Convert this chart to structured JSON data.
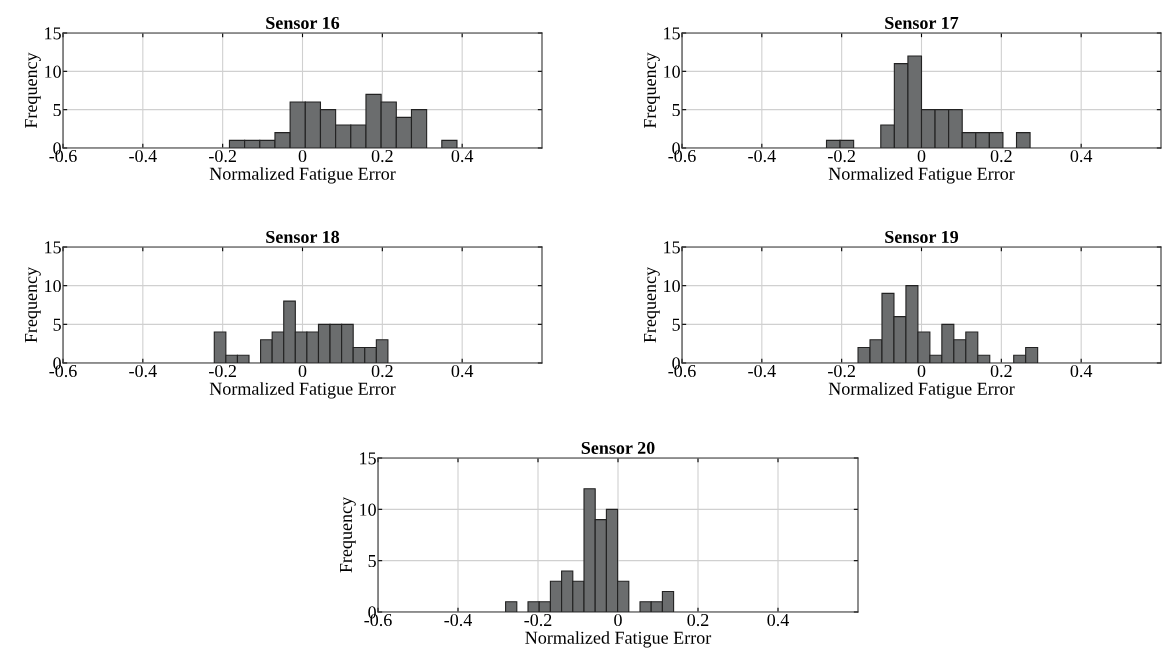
{
  "chart_data": [
    {
      "type": "histogram",
      "title": "Sensor 16",
      "xlabel": "Normalized Fatigue Error",
      "ylabel": "Frequency",
      "color": "#6b6d6e",
      "grid": true,
      "bins": [
        -0.183,
        -0.145,
        -0.107,
        -0.069,
        -0.031,
        0.007,
        0.045,
        0.083,
        0.121,
        0.159,
        0.197,
        0.235,
        0.273,
        0.311,
        0.349,
        0.387
      ],
      "values": [
        1,
        1,
        1,
        2,
        6,
        6,
        5,
        3,
        3,
        7,
        6,
        4,
        5,
        0,
        1
      ],
      "xlim": [
        -0.6,
        0.6
      ],
      "xticks": [
        -0.6,
        -0.4,
        -0.2,
        0,
        0.2,
        0.4
      ],
      "ylim": [
        0,
        15
      ],
      "yticks": [
        0,
        5,
        10,
        15
      ]
    },
    {
      "type": "histogram",
      "title": "Sensor 17",
      "xlabel": "Normalized Fatigue Error",
      "ylabel": "Frequency",
      "color": "#6b6d6e",
      "grid": true,
      "bins": [
        -0.238,
        -0.204,
        -0.17,
        -0.136,
        -0.102,
        -0.068,
        -0.034,
        0.0,
        0.034,
        0.068,
        0.102,
        0.136,
        0.17,
        0.204,
        0.238,
        0.272
      ],
      "values": [
        1,
        1,
        0,
        0,
        3,
        11,
        12,
        5,
        5,
        5,
        2,
        2,
        2,
        0,
        2
      ],
      "xlim": [
        -0.6,
        0.6
      ],
      "xticks": [
        -0.6,
        -0.4,
        -0.2,
        0,
        0.2,
        0.4
      ],
      "ylim": [
        0,
        15
      ],
      "yticks": [
        0,
        5,
        10,
        15
      ]
    },
    {
      "type": "histogram",
      "title": "Sensor 18",
      "xlabel": "Normalized Fatigue Error",
      "ylabel": "Frequency",
      "color": "#6b6d6e",
      "grid": true,
      "bins": [
        -0.221,
        -0.192,
        -0.163,
        -0.134,
        -0.105,
        -0.076,
        -0.047,
        -0.018,
        0.011,
        0.04,
        0.069,
        0.098,
        0.127,
        0.156,
        0.185,
        0.214
      ],
      "values": [
        4,
        1,
        1,
        0,
        3,
        4,
        8,
        4,
        4,
        5,
        5,
        5,
        2,
        2,
        3
      ],
      "xlim": [
        -0.6,
        0.6
      ],
      "xticks": [
        -0.6,
        -0.4,
        -0.2,
        0,
        0.2,
        0.4
      ],
      "ylim": [
        0,
        15
      ],
      "yticks": [
        0,
        5,
        10,
        15
      ]
    },
    {
      "type": "histogram",
      "title": "Sensor 19",
      "xlabel": "Normalized Fatigue Error",
      "ylabel": "Frequency",
      "color": "#6b6d6e",
      "grid": true,
      "bins": [
        -0.159,
        -0.129,
        -0.099,
        -0.069,
        -0.039,
        -0.009,
        0.021,
        0.051,
        0.081,
        0.111,
        0.141,
        0.171,
        0.201,
        0.231,
        0.261,
        0.291
      ],
      "values": [
        2,
        3,
        9,
        6,
        10,
        4,
        1,
        5,
        3,
        4,
        1,
        0,
        0,
        1,
        2
      ],
      "xlim": [
        -0.6,
        0.6
      ],
      "xticks": [
        -0.6,
        -0.4,
        -0.2,
        0,
        0.2,
        0.4
      ],
      "ylim": [
        0,
        15
      ],
      "yticks": [
        0,
        5,
        10,
        15
      ]
    },
    {
      "type": "histogram",
      "title": "Sensor 20",
      "xlabel": "Normalized Fatigue Error",
      "ylabel": "Frequency",
      "color": "#6b6d6e",
      "grid": true,
      "bins": [
        -0.281,
        -0.253,
        -0.225,
        -0.197,
        -0.169,
        -0.141,
        -0.113,
        -0.085,
        -0.057,
        -0.029,
        -0.001,
        0.027,
        0.055,
        0.083,
        0.111,
        0.139
      ],
      "values": [
        1,
        0,
        1,
        1,
        3,
        4,
        3,
        12,
        9,
        10,
        3,
        0,
        1,
        1,
        2
      ],
      "xlim": [
        -0.6,
        0.6
      ],
      "xticks": [
        -0.6,
        -0.4,
        -0.2,
        0,
        0.2,
        0.4
      ],
      "ylim": [
        0,
        15
      ],
      "yticks": [
        0,
        5,
        10,
        15
      ]
    }
  ]
}
